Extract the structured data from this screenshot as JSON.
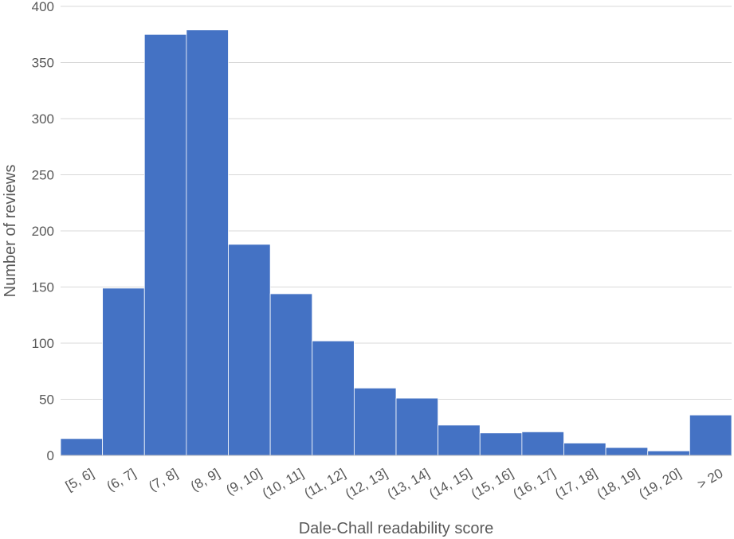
{
  "chart_data": {
    "type": "bar",
    "title": "",
    "xlabel": "Dale-Chall readability score",
    "ylabel": "Number of reviews",
    "categories": [
      "[5, 6]",
      "(6, 7]",
      "(7, 8]",
      "(8, 9]",
      "(9, 10]",
      "(10, 11]",
      "(11, 12]",
      "(12, 13]",
      "(13, 14]",
      "(14, 15]",
      "(15, 16]",
      "(16, 17]",
      "(17, 18]",
      "(18, 19]",
      "(19, 20]",
      "> 20"
    ],
    "values": [
      15,
      149,
      375,
      379,
      188,
      144,
      102,
      60,
      51,
      27,
      20,
      21,
      11,
      7,
      4,
      36
    ],
    "ylim": [
      0,
      400
    ],
    "yticks": [
      0,
      50,
      100,
      150,
      200,
      250,
      300,
      350,
      400
    ],
    "grid": true,
    "legend": "none",
    "bar_color": "#4472C4"
  }
}
